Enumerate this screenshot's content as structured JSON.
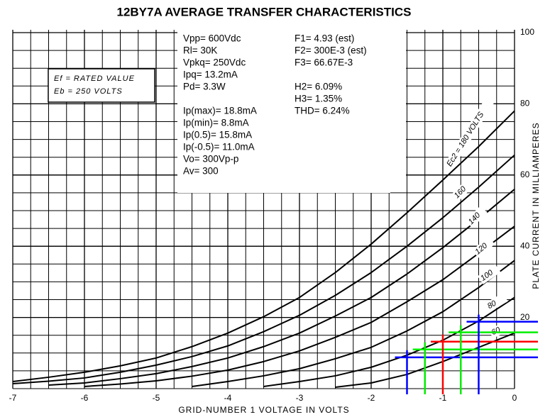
{
  "chart_data": {
    "type": "line",
    "title": "12BY7A AVERAGE TRANSFER CHARACTERISTICS",
    "xlabel": "GRID-NUMBER 1 VOLTAGE IN VOLTS",
    "ylabel": "PLATE CURRENT IN MILLIAMPERES",
    "x": [
      -7,
      -6.5,
      -6,
      -5.5,
      -5,
      -4.5,
      -4,
      -3.5,
      -3,
      -2.5,
      -2,
      -1.5,
      -1,
      -0.5,
      0
    ],
    "series": [
      {
        "name": "Ec2 = 180 VOLTS",
        "color": "#000000",
        "values": [
          2,
          3.2,
          4.6,
          6.4,
          8.6,
          11.8,
          15.6,
          20.2,
          25.6,
          32.6,
          40.6,
          49.4,
          58.6,
          68,
          78
        ]
      },
      {
        "name": "160",
        "color": "#000000",
        "values": [
          1.4,
          2.1,
          3,
          4.6,
          6.6,
          9,
          12,
          16,
          20.6,
          26.2,
          32.6,
          40,
          48,
          56.6,
          65.6
        ]
      },
      {
        "name": "140",
        "color": "#000000",
        "values": [
          null,
          1,
          1.6,
          2.8,
          4.2,
          6.2,
          8.6,
          11.8,
          15.6,
          20.4,
          25.6,
          32.2,
          39.6,
          47.6,
          56
        ]
      },
      {
        "name": "120",
        "color": "#000000",
        "values": [
          null,
          null,
          0.6,
          1.3,
          2.2,
          3.5,
          5.2,
          7.6,
          10.6,
          14.4,
          18.6,
          24.4,
          30.6,
          38,
          45.6
        ]
      },
      {
        "name": "100",
        "color": "#000000",
        "values": [
          null,
          null,
          null,
          null,
          null,
          0.6,
          2,
          3.6,
          5.6,
          8.4,
          11.6,
          16.2,
          21.6,
          28.4,
          36
        ]
      },
      {
        "name": "80",
        "color": "#000000",
        "values": [
          null,
          null,
          null,
          null,
          null,
          null,
          null,
          0.6,
          2,
          3.6,
          6,
          9.4,
          13.6,
          19,
          25.6
        ]
      },
      {
        "name": "60",
        "color": "#000000",
        "values": [
          null,
          null,
          null,
          null,
          null,
          null,
          null,
          null,
          null,
          0.4,
          1.6,
          4,
          7.6,
          11.6,
          15.6
        ]
      }
    ],
    "xlim": [
      -7,
      0
    ],
    "ylim": [
      0,
      100
    ],
    "xticks": [
      -7,
      -6,
      -5,
      -4,
      -3,
      -2,
      -1,
      0
    ],
    "yticks": [
      20,
      40,
      60,
      80,
      100
    ],
    "grid": true,
    "markers": [
      {
        "x": -1.5,
        "y": 8.8,
        "color": "#0000ff"
      },
      {
        "x": -1.25,
        "y": 11.0,
        "color": "#00ee00"
      },
      {
        "x": -1.0,
        "y": 13.2,
        "color": "#ff0000"
      },
      {
        "x": -0.75,
        "y": 15.8,
        "color": "#00ee00"
      },
      {
        "x": -0.5,
        "y": 18.8,
        "color": "#0000ff"
      }
    ],
    "conditions": [
      "Ef = RATED VALUE",
      "Eb = 250 VOLTS"
    ],
    "notes_left": [
      "Vpp= 600Vdc",
      "Rl= 30K",
      "Vpkq= 250Vdc",
      "Ipq= 13.2mA",
      "Pd= 3.3W",
      "Ip(max)= 18.8mA",
      "Ip(min)= 8.8mA",
      "Ip(0.5)= 15.8mA",
      "Ip(-0.5)= 11.0mA",
      "Vo= 300Vp-p",
      "Av= 300"
    ],
    "notes_right": [
      "F1= 4.93 (est)",
      "F2= 300E-3 (est)",
      "F3= 66.67E-3",
      "H2= 6.09%",
      "H3= 1.35%",
      "THD= 6.24%"
    ]
  }
}
